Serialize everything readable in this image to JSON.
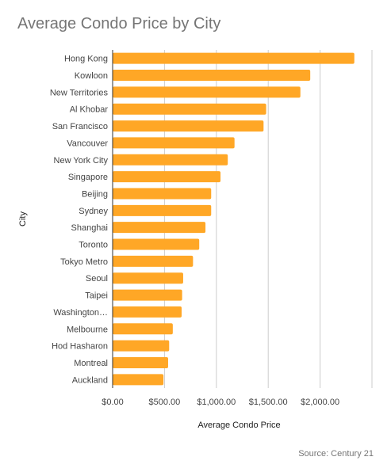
{
  "chart_data": {
    "type": "bar",
    "orientation": "horizontal",
    "title": "Average Condo Price by City",
    "xlabel": "Average Condo Price",
    "ylabel": "City",
    "xlim": [
      0,
      2500
    ],
    "xticks": [
      0,
      500,
      1000,
      1500,
      2000
    ],
    "xtick_labels": [
      "$0.00",
      "$500.00",
      "$1,000.00",
      "$1,500.00",
      "$2,000.00"
    ],
    "grid": true,
    "bar_color": "#ffa726",
    "categories": [
      "Hong Kong",
      "Kowloon",
      "New Territories",
      "Al Khobar",
      "San Francisco",
      "Vancouver",
      "New York City",
      "Singapore",
      "Beijing",
      "Sydney",
      "Shanghai",
      "Toronto",
      "Tokyo Metro",
      "Seoul",
      "Taipei",
      "Washington…",
      "Melbourne",
      "Hod Hasharon",
      "Montreal",
      "Auckland"
    ],
    "values": [
      2330,
      1905,
      1810,
      1480,
      1455,
      1175,
      1110,
      1040,
      950,
      950,
      895,
      835,
      775,
      680,
      670,
      665,
      580,
      545,
      535,
      490
    ]
  },
  "source": "Source: Century 21"
}
